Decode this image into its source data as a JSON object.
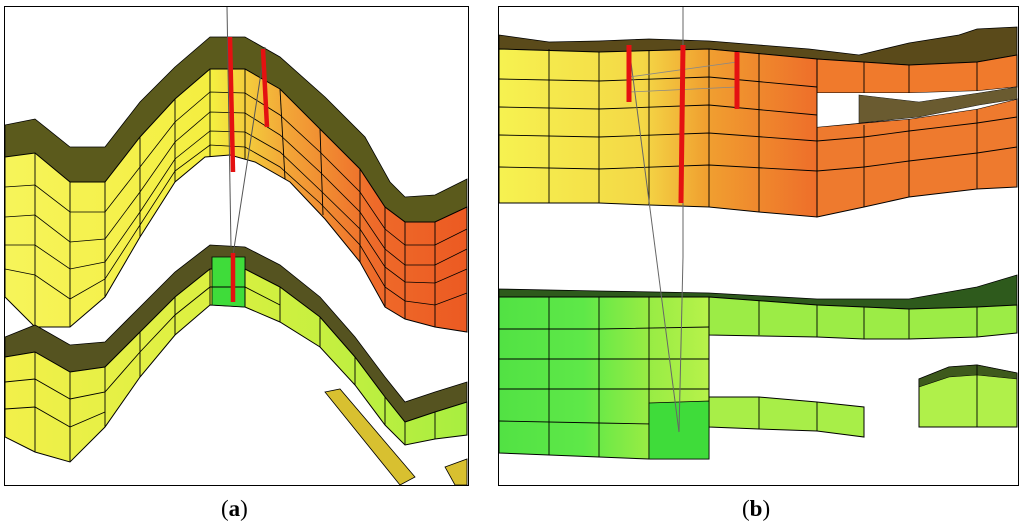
{
  "figure": {
    "panels": [
      {
        "id": "a",
        "label": "a",
        "caption_open": "(",
        "caption_close": ")"
      },
      {
        "id": "b",
        "label": "b",
        "caption_open": "(",
        "caption_close": ")"
      }
    ]
  },
  "colors": {
    "yellow": "#f4f24a",
    "orange": "#f07a2c",
    "red_orange": "#e8461e",
    "green": "#5fe847",
    "light_green": "#b9f24a",
    "well_red": "#ee1111",
    "grid_line": "#000000",
    "shadow": "#3c3a12"
  }
}
